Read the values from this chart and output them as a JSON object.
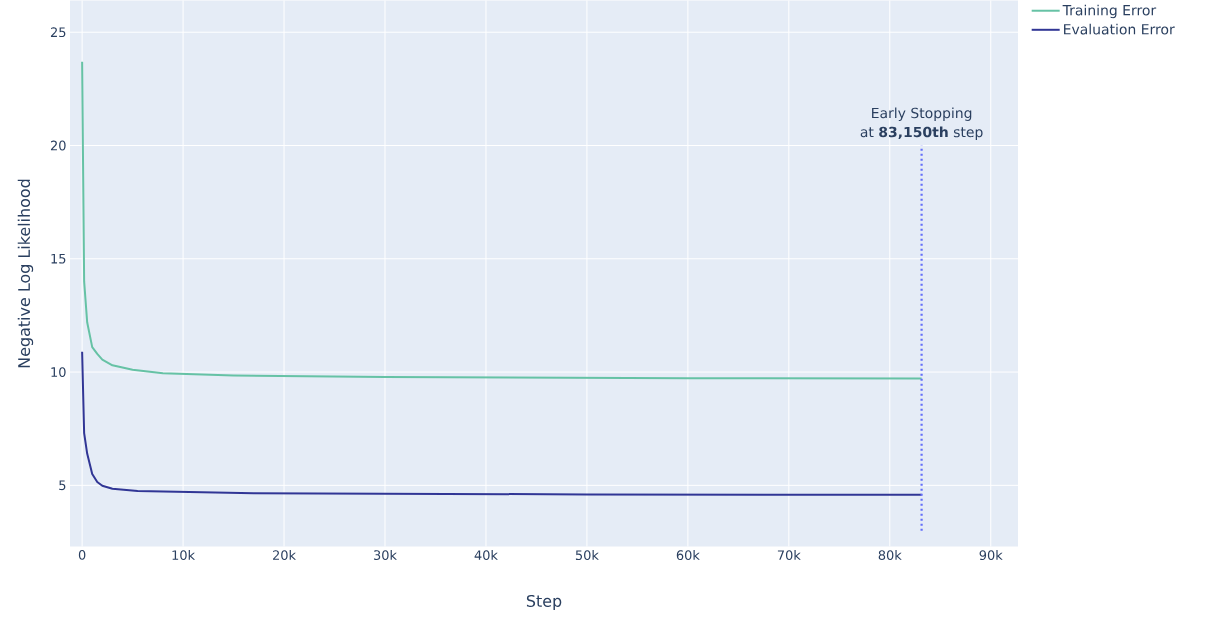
{
  "chart_data": {
    "type": "line",
    "xlabel": "Step",
    "ylabel": "Negative Log Likelihood",
    "xlim": [
      -1200,
      92700
    ],
    "ylim": [
      2.3,
      26.4
    ],
    "xticks": [
      0,
      {
        "value": 10000,
        "label": "10k"
      },
      {
        "value": 20000,
        "label": "20k"
      },
      {
        "value": 30000,
        "label": "30k"
      },
      {
        "value": 40000,
        "label": "40k"
      },
      {
        "value": 50000,
        "label": "50k"
      },
      {
        "value": 60000,
        "label": "60k"
      },
      {
        "value": 70000,
        "label": "70k"
      },
      {
        "value": 80000,
        "label": "80k"
      },
      {
        "value": 90000,
        "label": "90k"
      }
    ],
    "yticks": [
      5,
      10,
      15,
      20,
      25
    ],
    "grid": true,
    "legend": "top right",
    "line_style": "solid",
    "series": [
      {
        "name": "Training Error",
        "color": "#66c2a5",
        "x": [
          0,
          200,
          500,
          1000,
          1500,
          2000,
          3000,
          5000,
          8000,
          15000,
          30000,
          60000,
          83150
        ],
        "values": [
          23.7,
          14,
          12.2,
          11.1,
          10.8,
          10.55,
          10.3,
          10.1,
          9.95,
          9.85,
          9.78,
          9.73,
          9.72
        ]
      },
      {
        "name": "Evaluation Error",
        "color": "#313695",
        "x": [
          0,
          200,
          500,
          1000,
          1500,
          2000,
          3000,
          5500,
          17000,
          50000,
          83150
        ],
        "values": [
          10.9,
          7.3,
          6.4,
          5.5,
          5.15,
          4.98,
          4.85,
          4.75,
          4.65,
          4.6,
          4.58
        ]
      },
      {
        "color": "#636efa",
        "line_style": "dotted",
        "x": [
          83150,
          83150
        ],
        "values": [
          3,
          20
        ]
      }
    ],
    "annotations": [
      "Early Stopping",
      "at **83,150th** step"
    ]
  }
}
